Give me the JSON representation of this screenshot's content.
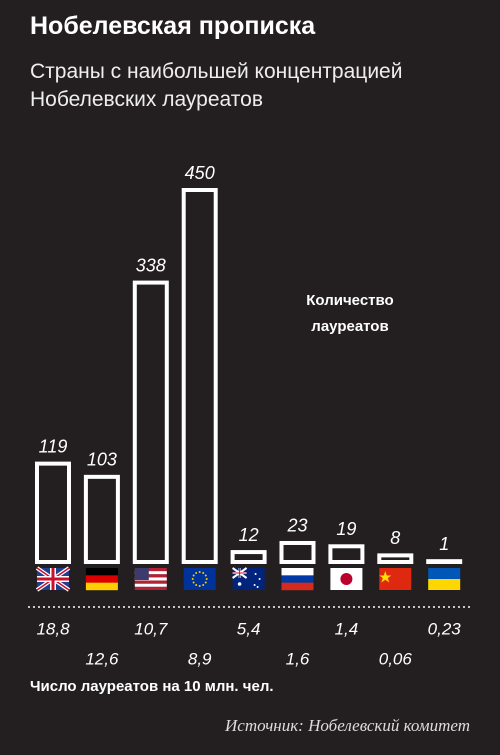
{
  "chart_data": {
    "type": "bar",
    "title": "Нобелевская прописка",
    "subtitle": "Страны с наибольшей концентрацией Нобелевских лауреатов",
    "categories": [
      null,
      null,
      null,
      null,
      null,
      null,
      null,
      null,
      null
    ],
    "series": [
      {
        "name": "Количество лауреатов",
        "color": "#ffffff",
        "values": [
          119,
          103,
          338,
          450,
          12,
          23,
          19,
          8,
          1
        ]
      }
    ],
    "ylim": [
      0,
      450
    ],
    "per_capita": {
      "label": "Число лауреатов на 10 млн. чел.",
      "values": [
        18.8,
        12.6,
        10.7,
        8.9,
        5.4,
        1.6,
        1.4,
        0.06,
        0.23
      ],
      "value_labels": [
        "18,8",
        "12,6",
        "10,7",
        "8,9",
        "5,4",
        "1,6",
        "1,4",
        "0,06",
        "0,23"
      ]
    },
    "source": "Источник: Нобелевский комитет"
  }
}
